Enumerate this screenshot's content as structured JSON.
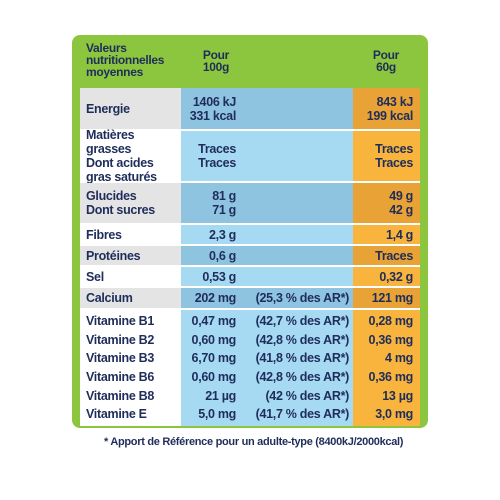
{
  "header": {
    "label": [
      "Valeurs",
      "nutritionnelles",
      "moyennes"
    ],
    "per_100g": [
      "Pour",
      "100g"
    ],
    "per_60g": [
      "Pour",
      "60g"
    ]
  },
  "rows": [
    {
      "label": [
        "Energie"
      ],
      "per_100g": [
        "1406 kJ",
        "331 kcal"
      ],
      "per_60g": [
        "843 kJ",
        "199 kcal"
      ]
    },
    {
      "label": [
        "Matières grasses",
        "Dont acides",
        "gras saturés"
      ],
      "per_100g": [
        "Traces",
        "Traces"
      ],
      "per_60g": [
        "Traces",
        "Traces"
      ]
    },
    {
      "label": [
        "Glucides",
        "Dont sucres"
      ],
      "per_100g": [
        "81 g",
        "71 g"
      ],
      "per_60g": [
        "49 g",
        "42 g"
      ]
    },
    {
      "label": [
        "Fibres"
      ],
      "per_100g": [
        "2,3 g"
      ],
      "per_60g": [
        "1,4 g"
      ]
    },
    {
      "label": [
        "Protéines"
      ],
      "per_100g": [
        "0,6 g"
      ],
      "per_60g": [
        "Traces"
      ]
    },
    {
      "label": [
        "Sel"
      ],
      "per_100g": [
        "0,53 g"
      ],
      "per_60g": [
        "0,32 g"
      ]
    },
    {
      "label": [
        "Calcium"
      ],
      "per_100g": [
        "202 mg"
      ],
      "ar": [
        "(25,3 % des AR*)"
      ],
      "per_60g": [
        "121 mg"
      ]
    },
    {
      "label": [
        "Vitamine B1",
        "Vitamine B2",
        "Vitamine B3",
        "Vitamine B6",
        "Vitamine B8",
        "Vitamine E"
      ],
      "per_100g": [
        "0,47 mg",
        "0,60 mg",
        "6,70 mg",
        "0,60 mg",
        "21 µg",
        "5,0 mg"
      ],
      "ar": [
        "(42,7 % des AR*)",
        "(42,8 % des AR*)",
        "(41,8 % des AR*)",
        "(42,8 % des AR*)",
        "(42 % des AR*)",
        "(41,7 % des AR*)"
      ],
      "per_60g": [
        "0,28 mg",
        "0,36 mg",
        "4 mg",
        "0,36 mg",
        "13 µg",
        "3,0 mg"
      ]
    }
  ],
  "footnote": "* Apport de Référence pour un adulte-type (8400kJ/2000kcal)"
}
